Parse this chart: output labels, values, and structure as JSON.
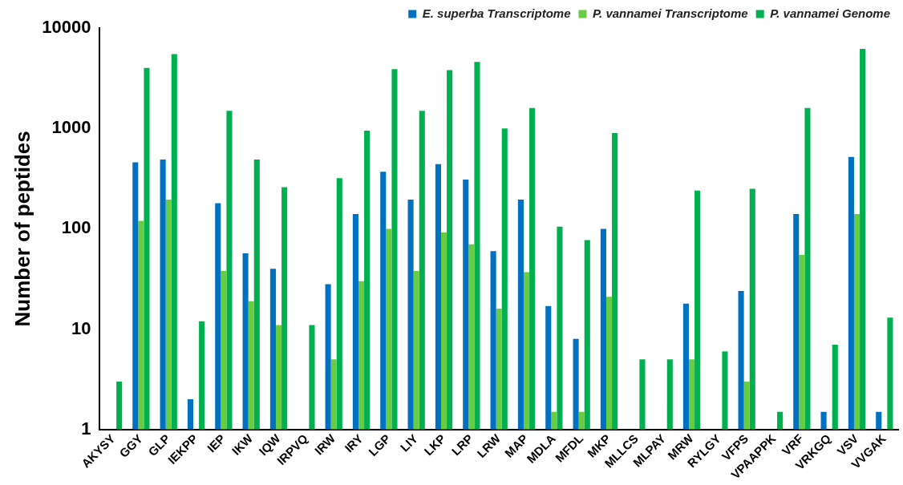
{
  "chart_data": {
    "type": "bar",
    "ylabel": "Number of peptides",
    "categories": [
      "AKYSY",
      "GGY",
      "GLP",
      "IEKPP",
      "IEP",
      "IKW",
      "IQW",
      "IRPVQ",
      "IRW",
      "IRY",
      "LGP",
      "LIY",
      "LKP",
      "LRP",
      "LRW",
      "MAP",
      "MDLA",
      "MFDL",
      "MKP",
      "MLLCS",
      "MLPAY",
      "MRW",
      "RYLGY",
      "VFPS",
      "VPAAPPK",
      "VRF",
      "VRKGQ",
      "VSV",
      "VVGAK"
    ],
    "series": [
      {
        "name": "E. superba Transcriptome",
        "color": "#0070c0",
        "values": [
          null,
          460,
          490,
          2,
          180,
          57,
          40,
          null,
          28,
          140,
          370,
          195,
          440,
          310,
          60,
          195,
          17,
          8,
          100,
          null,
          null,
          18,
          null,
          24,
          null,
          140,
          1.5,
          520,
          1.5
        ]
      },
      {
        "name": "P. vannamei Transcriptome",
        "color": "#66cc44",
        "values": [
          null,
          120,
          195,
          null,
          38,
          19,
          11,
          null,
          5,
          30,
          100,
          38,
          92,
          70,
          16,
          37,
          1.5,
          1.5,
          21,
          null,
          null,
          5,
          null,
          3,
          null,
          55,
          null,
          140,
          null
        ]
      },
      {
        "name": "P. vannamei Genome",
        "color": "#00b050",
        "values": [
          3,
          4000,
          5500,
          12,
          1500,
          490,
          260,
          11,
          320,
          950,
          3900,
          1500,
          3800,
          4600,
          1000,
          1600,
          105,
          77,
          900,
          5,
          5,
          240,
          6,
          250,
          1.5,
          1600,
          7,
          6200,
          13
        ]
      }
    ],
    "log": "y",
    "ylim": [
      1,
      10000
    ],
    "yticks": [
      1,
      10,
      100,
      1000,
      10000
    ],
    "grid": false,
    "legend": "top right"
  }
}
